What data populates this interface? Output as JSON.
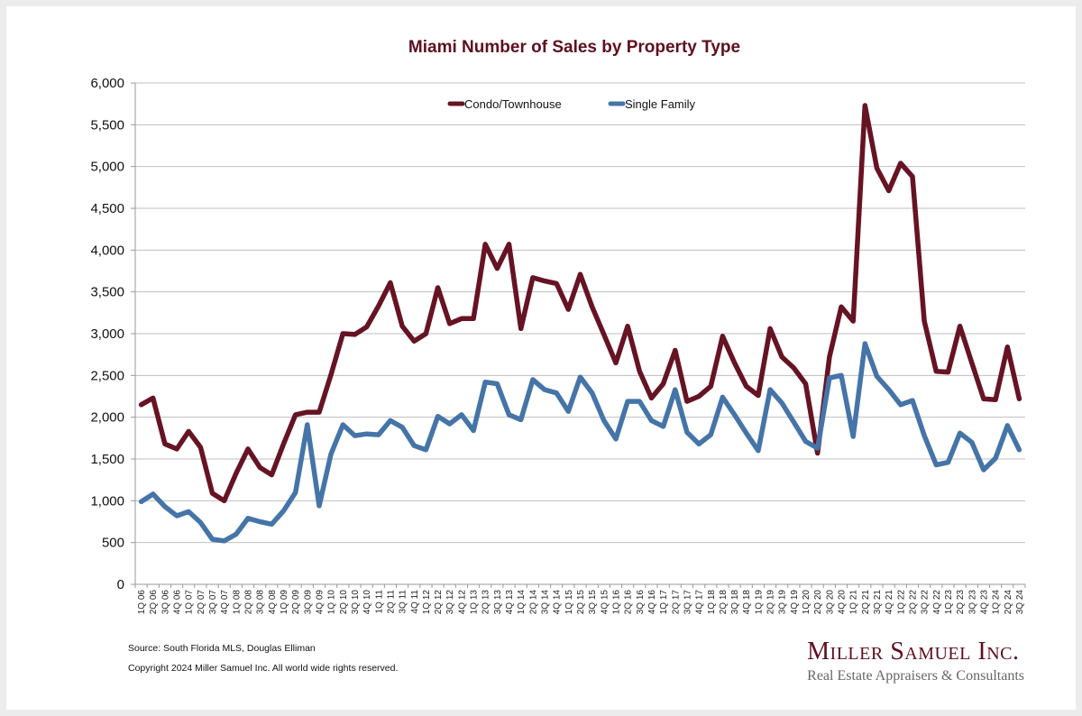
{
  "chart_data": {
    "type": "line",
    "title": "Miami Number of Sales by Property Type",
    "xlabel": "",
    "ylabel": "",
    "ylim": [
      0,
      6000
    ],
    "yticks": [
      0,
      500,
      1000,
      1500,
      2000,
      2500,
      3000,
      3500,
      4000,
      4500,
      5000,
      5500,
      6000
    ],
    "ytick_labels": [
      "0",
      "500",
      "1,000",
      "1,500",
      "2,000",
      "2,500",
      "3,000",
      "3,500",
      "4,000",
      "4,500",
      "5,000",
      "5,500",
      "6,000"
    ],
    "grid": true,
    "legend_position": "top-center",
    "categories": [
      "1Q 06",
      "2Q 06",
      "3Q 06",
      "4Q 06",
      "1Q 07",
      "2Q 07",
      "3Q 07",
      "4Q 07",
      "1Q 08",
      "2Q 08",
      "3Q 08",
      "4Q 08",
      "1Q 09",
      "2Q 09",
      "3Q 09",
      "4Q 09",
      "1Q 10",
      "2Q 10",
      "3Q 10",
      "4Q 10",
      "1Q 11",
      "2Q 11",
      "3Q 11",
      "4Q 11",
      "1Q 12",
      "2Q 12",
      "3Q 12",
      "4Q 12",
      "1Q 13",
      "2Q 13",
      "3Q 13",
      "4Q 13",
      "1Q 14",
      "2Q 14",
      "3Q 14",
      "4Q 14",
      "1Q 15",
      "2Q 15",
      "3Q 15",
      "4Q 15",
      "1Q 16",
      "2Q 16",
      "3Q 16",
      "4Q 16",
      "1Q 17",
      "2Q 17",
      "3Q 17",
      "4Q 17",
      "1Q 18",
      "2Q 18",
      "3Q 18",
      "4Q 18",
      "1Q 19",
      "2Q 19",
      "3Q 19",
      "4Q 19",
      "1Q 20",
      "2Q 20",
      "3Q 20",
      "4Q 20",
      "1Q 21",
      "2Q 21",
      "3Q 21",
      "4Q 21",
      "1Q 22",
      "2Q 22",
      "3Q 22",
      "4Q 22",
      "1Q 23",
      "2Q 23",
      "3Q 23",
      "4Q 23",
      "1Q 24",
      "2Q 24",
      "3Q 24"
    ],
    "series": [
      {
        "name": "Condo/Townhouse",
        "color": "#661324",
        "values": [
          2150,
          2230,
          1680,
          1620,
          1830,
          1640,
          1090,
          1000,
          1330,
          1620,
          1400,
          1310,
          1680,
          2030,
          2060,
          2060,
          2510,
          3000,
          2990,
          3080,
          3330,
          3610,
          3090,
          2910,
          3000,
          3550,
          3120,
          3180,
          3180,
          4070,
          3780,
          4070,
          3060,
          3670,
          3630,
          3600,
          3290,
          3710,
          3320,
          2990,
          2650,
          3090,
          2550,
          2230,
          2400,
          2800,
          2190,
          2250,
          2370,
          2970,
          2650,
          2370,
          2260,
          3060,
          2720,
          2590,
          2400,
          1570,
          2720,
          3320,
          3150,
          5730,
          4980,
          4710,
          5040,
          4880,
          3150,
          2550,
          2540,
          3090,
          2650,
          2220,
          2210,
          2840,
          2220
        ]
      },
      {
        "name": "Single Family",
        "color": "#4574a8",
        "values": [
          990,
          1080,
          930,
          820,
          870,
          740,
          540,
          520,
          600,
          790,
          750,
          720,
          880,
          1100,
          1910,
          940,
          1560,
          1910,
          1780,
          1800,
          1790,
          1960,
          1880,
          1660,
          1610,
          2010,
          1920,
          2030,
          1840,
          2420,
          2400,
          2030,
          1970,
          2450,
          2330,
          2290,
          2070,
          2480,
          2290,
          1960,
          1740,
          2190,
          2190,
          1960,
          1890,
          2330,
          1820,
          1680,
          1790,
          2240,
          2030,
          1810,
          1600,
          2330,
          2170,
          1940,
          1710,
          1630,
          2470,
          2500,
          1770,
          2880,
          2490,
          2330,
          2150,
          2200,
          1780,
          1430,
          1460,
          1810,
          1700,
          1370,
          1510,
          1900,
          1610
        ]
      }
    ]
  },
  "footer": {
    "source": "Source: South Florida MLS, Douglas Elliman",
    "copyright": "Copyright 2024 Miller Samuel Inc.  All world wide rights reserved."
  },
  "logo": {
    "name": "Miller Samuel Inc.",
    "tagline": "Real Estate Appraisers & Consultants"
  }
}
